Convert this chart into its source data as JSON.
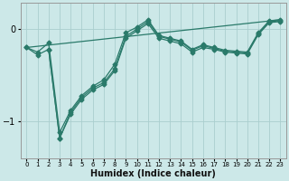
{
  "background_color": "#cce8e8",
  "plot_bg_color": "#cce8e8",
  "grid_color": "#aacece",
  "line_color": "#2a7a6a",
  "xlabel": "Humidex (Indice chaleur)",
  "xlim": [
    -0.5,
    23.5
  ],
  "ylim": [
    -1.4,
    0.28
  ],
  "yticks": [
    0,
    -1
  ],
  "xticks": [
    0,
    1,
    2,
    3,
    4,
    5,
    6,
    7,
    8,
    9,
    10,
    11,
    12,
    13,
    14,
    15,
    16,
    17,
    18,
    19,
    20,
    21,
    22,
    23
  ],
  "series1_x": [
    0,
    1,
    2,
    3,
    4,
    5,
    6,
    7,
    8,
    9,
    10,
    11,
    12,
    13,
    14,
    15,
    16,
    17,
    18,
    19,
    20,
    21,
    22,
    23
  ],
  "series1_y": [
    -0.2,
    -0.25,
    -0.15,
    -1.12,
    -0.88,
    -0.72,
    -0.62,
    -0.55,
    -0.38,
    -0.04,
    0.02,
    0.1,
    -0.07,
    -0.1,
    -0.13,
    -0.22,
    -0.17,
    -0.2,
    -0.23,
    -0.24,
    -0.25,
    -0.04,
    0.09,
    0.1
  ],
  "series2_x": [
    0,
    1,
    2,
    3,
    4,
    5,
    6,
    7,
    8,
    9,
    10,
    11,
    12,
    13,
    14,
    15,
    16,
    17,
    18,
    19,
    20,
    21,
    22,
    23
  ],
  "series2_y": [
    -0.2,
    -0.28,
    -0.22,
    -1.18,
    -0.92,
    -0.76,
    -0.66,
    -0.6,
    -0.45,
    -0.1,
    -0.02,
    0.06,
    -0.1,
    -0.13,
    -0.16,
    -0.25,
    -0.2,
    -0.22,
    -0.25,
    -0.26,
    -0.27,
    -0.06,
    0.07,
    0.08
  ],
  "series3_x": [
    2,
    3,
    4,
    5,
    6,
    7,
    8,
    9,
    10,
    11,
    12,
    13,
    14,
    15,
    16,
    17,
    18,
    19,
    20,
    21,
    22,
    23
  ],
  "series3_y": [
    -0.22,
    -1.18,
    -0.9,
    -0.74,
    -0.64,
    -0.58,
    -0.43,
    -0.08,
    0.0,
    0.08,
    -0.08,
    -0.11,
    -0.14,
    -0.23,
    -0.18,
    -0.21,
    -0.24,
    -0.25,
    -0.26,
    -0.05,
    0.08,
    0.09
  ],
  "series4_x": [
    0,
    23
  ],
  "series4_y": [
    -0.2,
    0.1
  ],
  "marker": "D",
  "marker_size": 2.5,
  "line_width": 0.9
}
